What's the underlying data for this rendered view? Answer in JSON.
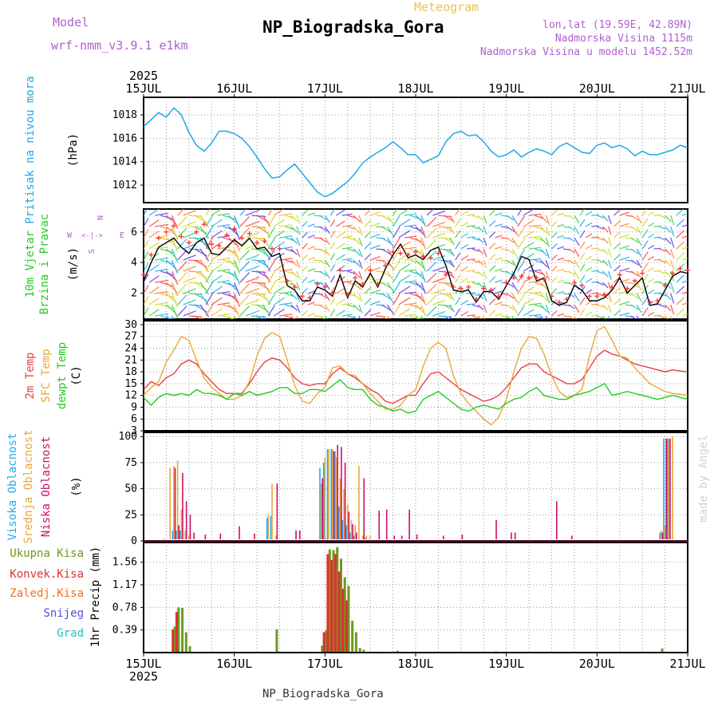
{
  "header": {
    "model_label": "Model",
    "model_name": "wrf-nmm_v3.9.1 e1km",
    "subtitle": "Meteogram",
    "station_title": "NP_Biogradska_Gora",
    "lonlat": "lon,lat (19.59E, 42.89N)",
    "elevation": "Nadmorska Visina 1115m",
    "model_elevation": "Nadmorska Visina u modelu 1452.52m",
    "footer_station": "NP_Biogradska_Gora",
    "credit": "made by Angel"
  },
  "colors": {
    "pressure": "#1ea7e8",
    "wind_speed": "#000000",
    "gust_marker": "#ff3030",
    "temp_2m": "#e84040",
    "temp_sfc": "#e8a838",
    "dewpoint": "#22cc22",
    "cloud_high": "#22aaee",
    "cloud_mid": "#e8a838",
    "cloud_low": "#cc1066",
    "precip_total": "#6a9a20",
    "precip_conv": "#e03030",
    "precip_frozen": "#f07020",
    "snow": "#5050e0",
    "hail": "#20c0c0",
    "model_text": "#b060d0",
    "subtitle_text": "#f0c050"
  },
  "chart_data": [
    {
      "type": "line",
      "title": "",
      "ylabel": "Pritisak na nivou mora",
      "unit": "(hPa)",
      "xlim": [
        0,
        144
      ],
      "ylim": [
        1010.5,
        1019.5
      ],
      "yticks": [
        1012,
        1014,
        1016,
        1018
      ],
      "grid": true,
      "x": [
        0,
        2,
        4,
        6,
        8,
        10,
        12,
        14,
        16,
        18,
        20,
        22,
        24,
        26,
        28,
        30,
        32,
        34,
        36,
        38,
        40,
        42,
        44,
        46,
        48,
        50,
        52,
        54,
        56,
        58,
        60,
        62,
        64,
        66,
        68,
        70,
        72,
        74,
        76,
        78,
        80,
        82,
        84,
        86,
        88,
        90,
        92,
        94,
        96,
        98,
        100,
        102,
        104,
        106,
        108,
        110,
        112,
        114,
        116,
        118,
        120,
        122,
        124,
        126,
        128,
        130,
        132,
        134,
        136,
        138,
        140,
        142,
        144
      ],
      "values": [
        1017.0,
        1017.6,
        1018.2,
        1017.8,
        1018.6,
        1018.0,
        1016.5,
        1015.4,
        1014.9,
        1015.6,
        1016.6,
        1016.6,
        1016.4,
        1016.0,
        1015.3,
        1014.4,
        1013.4,
        1012.6,
        1012.7,
        1013.3,
        1013.8,
        1013.0,
        1012.2,
        1011.4,
        1011.0,
        1011.3,
        1011.8,
        1012.3,
        1013.0,
        1013.9,
        1014.4,
        1014.8,
        1015.2,
        1015.7,
        1015.2,
        1014.6,
        1014.6,
        1013.9,
        1014.2,
        1014.5,
        1015.7,
        1016.4,
        1016.6,
        1016.2,
        1016.3,
        1015.7,
        1014.9,
        1014.4,
        1014.6,
        1015.0,
        1014.4,
        1014.8,
        1015.1,
        1014.9,
        1014.6,
        1015.3,
        1015.6,
        1015.2,
        1014.8,
        1014.7,
        1015.4,
        1015.6,
        1015.2,
        1015.4,
        1015.1,
        1014.5,
        1014.9,
        1014.6,
        1014.6,
        1014.8,
        1015.0,
        1015.4,
        1015.2
      ],
      "series": [
        {
          "name": "Pritisak na nivou mora",
          "color_key": "pressure"
        }
      ]
    },
    {
      "type": "line",
      "title": "",
      "ylabel": [
        "10m Vjetar",
        "Brzina i Pravac"
      ],
      "unit": "(m/s)",
      "direction_legend": {
        "north": "N",
        "west": "W",
        "east": "E",
        "south": "S"
      },
      "xlim": [
        0,
        144
      ],
      "ylim": [
        0.3,
        7.5
      ],
      "yticks": [
        2,
        4,
        6
      ],
      "grid": true,
      "x": [
        0,
        2,
        4,
        6,
        8,
        10,
        12,
        14,
        16,
        18,
        20,
        22,
        24,
        26,
        28,
        30,
        32,
        34,
        36,
        38,
        40,
        42,
        44,
        46,
        48,
        50,
        52,
        54,
        56,
        58,
        60,
        62,
        64,
        66,
        68,
        70,
        72,
        74,
        76,
        78,
        80,
        82,
        84,
        86,
        88,
        90,
        92,
        94,
        96,
        98,
        100,
        102,
        104,
        106,
        108,
        110,
        112,
        114,
        116,
        118,
        120,
        122,
        124,
        126,
        128,
        130,
        132,
        134,
        136,
        138,
        140,
        142,
        144
      ],
      "speed": [
        2.8,
        4.0,
        5.0,
        5.3,
        5.6,
        5.0,
        4.6,
        5.3,
        5.6,
        4.6,
        4.5,
        5.0,
        5.5,
        5.1,
        5.6,
        4.9,
        5.0,
        4.4,
        4.6,
        2.5,
        2.2,
        1.5,
        1.5,
        2.4,
        2.2,
        1.8,
        3.2,
        1.7,
        2.8,
        2.4,
        3.3,
        2.4,
        3.6,
        4.5,
        5.2,
        4.3,
        4.5,
        4.2,
        4.8,
        5.0,
        3.8,
        2.2,
        2.1,
        2.2,
        1.4,
        2.1,
        2.1,
        1.6,
        2.5,
        3.3,
        4.4,
        4.2,
        2.8,
        3.0,
        1.5,
        1.2,
        1.4,
        2.5,
        2.2,
        1.5,
        1.5,
        1.7,
        2.2,
        3.0,
        2.0,
        2.5,
        3.0,
        1.2,
        1.3,
        2.2,
        3.1,
        3.4,
        3.3
      ],
      "gust": [
        3.2,
        4.5,
        5.6,
        6.0,
        6.4,
        5.7,
        5.3,
        6.0,
        6.5,
        5.2,
        5.1,
        5.8,
        6.2,
        5.6,
        5.9,
        5.3,
        5.4,
        4.9,
        4.9,
        2.8,
        2.4,
        1.8,
        1.7,
        2.6,
        2.4,
        2.0,
        3.5,
        1.9,
        3.0,
        2.6,
        3.5,
        2.6,
        3.8,
        4.7,
        4.6,
        4.5,
        4.7,
        4.4,
        4.3,
        4.6,
        3.2,
        2.4,
        2.3,
        2.4,
        1.6,
        2.3,
        2.2,
        1.8,
        2.7,
        3.0,
        3.1,
        3.0,
        3.0,
        2.9,
        1.8,
        1.4,
        1.6,
        2.7,
        2.5,
        1.8,
        1.8,
        1.9,
        2.4,
        3.2,
        2.3,
        2.8,
        3.3,
        1.4,
        1.5,
        2.5,
        3.3,
        3.6,
        3.5
      ],
      "series": [
        {
          "name": "wind speed",
          "color_key": "wind_speed"
        },
        {
          "name": "gust",
          "color_key": "gust_marker"
        }
      ]
    },
    {
      "type": "line",
      "title": "",
      "ylabel": [
        "2m Temp",
        "SFC Temp",
        "dewpt Temp"
      ],
      "unit": "(C)",
      "xlim": [
        0,
        144
      ],
      "ylim": [
        3,
        31
      ],
      "yticks": [
        3,
        6,
        9,
        12,
        15,
        18,
        21,
        24,
        27,
        30
      ],
      "grid": true,
      "x": [
        0,
        2,
        4,
        6,
        8,
        10,
        12,
        14,
        16,
        18,
        20,
        22,
        24,
        26,
        28,
        30,
        32,
        34,
        36,
        38,
        40,
        42,
        44,
        46,
        48,
        50,
        52,
        54,
        56,
        58,
        60,
        62,
        64,
        66,
        68,
        70,
        72,
        74,
        76,
        78,
        80,
        82,
        84,
        86,
        88,
        90,
        92,
        94,
        96,
        98,
        100,
        102,
        104,
        106,
        108,
        110,
        112,
        114,
        116,
        118,
        120,
        122,
        124,
        126,
        128,
        130,
        132,
        134,
        136,
        138,
        140,
        142,
        144
      ],
      "series": [
        {
          "name": "2m Temp",
          "color_key": "temp_2m",
          "values": [
            13.5,
            15.5,
            14.5,
            16.5,
            17.5,
            20,
            21,
            20,
            17.5,
            15.5,
            13.5,
            12.5,
            12.5,
            12.5,
            15,
            18,
            20.5,
            21.5,
            21,
            19,
            16.5,
            15,
            14.5,
            15,
            15,
            17.5,
            19,
            17.5,
            16.5,
            15,
            13.5,
            12.5,
            10.5,
            10,
            11,
            12,
            12,
            15,
            17.5,
            18,
            16.5,
            15,
            13.5,
            12.5,
            11.5,
            10.5,
            11,
            12,
            14,
            16.5,
            19,
            20,
            20,
            18,
            17,
            16,
            15,
            15,
            16,
            19,
            22,
            23.5,
            22.5,
            22,
            21,
            20,
            19.5,
            19,
            18.5,
            18,
            18.5,
            18.2,
            18
          ]
        },
        {
          "name": "SFC Temp",
          "color_key": "temp_sfc",
          "values": [
            12,
            14,
            15.5,
            20.5,
            23.5,
            27,
            26,
            21,
            16.5,
            14,
            12.5,
            11,
            11,
            12,
            15.5,
            22,
            26.5,
            28,
            27,
            21,
            14.5,
            10.5,
            10,
            12.5,
            14,
            19,
            19.5,
            17.5,
            17,
            15,
            12.5,
            10.5,
            8.5,
            8.5,
            9.5,
            12,
            13.5,
            19.5,
            24,
            25.5,
            24,
            17,
            12.5,
            10,
            8,
            6,
            4.5,
            6.5,
            11,
            18,
            24,
            27,
            26.5,
            22.5,
            17,
            13,
            11.5,
            12,
            13.5,
            22,
            28.5,
            29.5,
            26,
            22,
            21.5,
            19,
            17,
            15,
            14,
            13,
            12.5,
            12.3,
            12
          ]
        },
        {
          "name": "dewpt Temp",
          "color_key": "dewpoint",
          "values": [
            11.5,
            9.5,
            11.5,
            12.5,
            12,
            12.5,
            12,
            13.5,
            12.5,
            12.5,
            12,
            11,
            12.5,
            12,
            13,
            12,
            12.5,
            13,
            14,
            14,
            12.5,
            12.5,
            13.5,
            13.5,
            13,
            14.5,
            16,
            14,
            13.5,
            13.5,
            11,
            9.5,
            9,
            8,
            8.5,
            7.5,
            8,
            11,
            12,
            13,
            11.5,
            10,
            8.5,
            8,
            9,
            9.5,
            9,
            8.5,
            10,
            11,
            11.5,
            13,
            14,
            12,
            11.5,
            11,
            11,
            12,
            12.5,
            13,
            14,
            15,
            12,
            12.5,
            13,
            12.5,
            12,
            11.5,
            11,
            11.5,
            12,
            11.5,
            11
          ]
        }
      ]
    },
    {
      "type": "bar",
      "title": "",
      "ylabel": [
        "Visoka Oblacnost",
        "Srednja Oblacnost",
        "Niska Oblacnost"
      ],
      "unit": "(%)",
      "xlim": [
        0,
        144
      ],
      "ylim": [
        0,
        104
      ],
      "yticks": [
        0,
        25,
        50,
        75,
        100
      ],
      "grid": true,
      "series": [
        {
          "name": "Visoka Oblacnost",
          "color_key": "cloud_high",
          "x": [
            8,
            9,
            10,
            33,
            34,
            47,
            48,
            49,
            50,
            51,
            52,
            53,
            54,
            55,
            56,
            59,
            60,
            137,
            138,
            139
          ],
          "values": [
            10,
            10,
            10,
            22,
            24,
            70,
            75,
            88,
            88,
            86,
            33,
            20,
            15,
            8,
            5,
            3,
            2,
            8,
            98,
            98
          ]
        },
        {
          "name": "Srednja Oblacnost",
          "color_key": "cloud_mid",
          "x": [
            7,
            8,
            9,
            10,
            11,
            12,
            33,
            34,
            35,
            47,
            48,
            49,
            50,
            51,
            52,
            53,
            54,
            55,
            56,
            57,
            58,
            59,
            60,
            137,
            138,
            139,
            140
          ],
          "values": [
            70,
            72,
            77,
            30,
            10,
            5,
            25,
            55,
            5,
            55,
            80,
            88,
            88,
            80,
            60,
            50,
            35,
            20,
            15,
            72,
            5,
            5,
            5,
            10,
            15,
            98,
            100
          ]
        },
        {
          "name": "Niska Oblacnost",
          "color_key": "cloud_low",
          "x": [
            5,
            8,
            9,
            10,
            11,
            12,
            13,
            16,
            20,
            25,
            29,
            35,
            40,
            41,
            47,
            48,
            50,
            51,
            52,
            53,
            54,
            55,
            56,
            58,
            62,
            64,
            66,
            68,
            70,
            72,
            79,
            84,
            93,
            97,
            98,
            109,
            113,
            137,
            138,
            139
          ],
          "values": [
            2,
            70,
            15,
            65,
            38,
            25,
            8,
            6,
            7,
            14,
            7,
            55,
            10,
            10,
            60,
            2,
            86,
            92,
            90,
            75,
            28,
            16,
            8,
            60,
            29,
            30,
            5,
            5,
            30,
            6,
            5,
            6,
            20,
            8,
            8,
            38,
            5,
            8,
            98,
            98
          ]
        }
      ]
    },
    {
      "type": "bar",
      "title": "",
      "ylabel": "1hr Precip",
      "unit": "(mm)",
      "legend": [
        "Ukupna Kisa",
        "Konvek.Kisa",
        "Zaledj.Kisa",
        "Snijeg",
        "Grad"
      ],
      "xlim": [
        0,
        144
      ],
      "ylim": [
        0,
        1.9
      ],
      "yticks": [
        0.39,
        0.78,
        1.17,
        1.56
      ],
      "grid": true,
      "series": [
        {
          "name": "Ukupna Kisa",
          "color_key": "precip_total",
          "x": [
            8,
            9,
            10,
            11,
            12,
            35,
            47,
            48,
            49,
            50,
            51,
            52,
            53,
            54,
            55,
            56,
            57,
            58,
            67,
            93,
            137
          ],
          "values": [
            0.45,
            0.78,
            0.77,
            0.35,
            0.11,
            0.4,
            0.12,
            0.38,
            1.78,
            1.77,
            1.82,
            1.62,
            1.3,
            1.15,
            0.55,
            0.35,
            0.08,
            0.05,
            0.03,
            0.02,
            0.07
          ]
        },
        {
          "name": "Konvek.Kisa",
          "color_key": "precip_conv",
          "x": [
            8,
            9,
            48,
            49,
            50,
            51,
            52,
            53,
            54
          ],
          "values": [
            0.4,
            0.7,
            0.35,
            1.7,
            1.6,
            1.7,
            1.4,
            1.1,
            0.9
          ]
        }
      ]
    }
  ],
  "axis": {
    "day_ticks": [
      "15JUL",
      "16JUL",
      "17JUL",
      "18JUL",
      "19JUL",
      "20JUL",
      "21JUL"
    ],
    "year_label": "2025"
  }
}
